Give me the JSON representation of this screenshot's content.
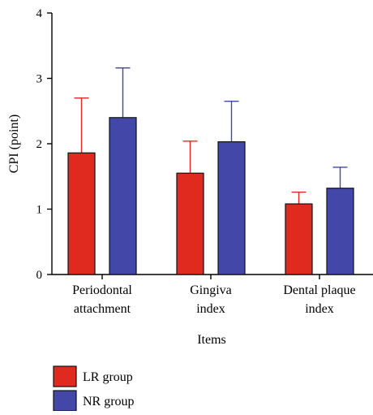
{
  "chart_data": {
    "type": "bar",
    "title": "",
    "xlabel": "Items",
    "ylabel": "CPI (point)",
    "ylim": [
      0,
      4
    ],
    "yticks": [
      "0",
      "1",
      "2",
      "3",
      "4"
    ],
    "categories": [
      [
        "Periodontal",
        "attachment"
      ],
      [
        "Gingiva",
        "index"
      ],
      [
        "Dental plaque",
        "index"
      ]
    ],
    "series": [
      {
        "name": "LR group",
        "color": "#e0291f",
        "values": [
          1.86,
          1.55,
          1.08
        ],
        "errors": [
          0.84,
          0.49,
          0.18
        ]
      },
      {
        "name": "NR group",
        "color": "#4347a8",
        "values": [
          2.4,
          2.03,
          1.32
        ],
        "errors": [
          0.76,
          0.62,
          0.32
        ]
      }
    ],
    "error_bars": "upper",
    "grid": false,
    "legend_position": "bottom-left"
  }
}
